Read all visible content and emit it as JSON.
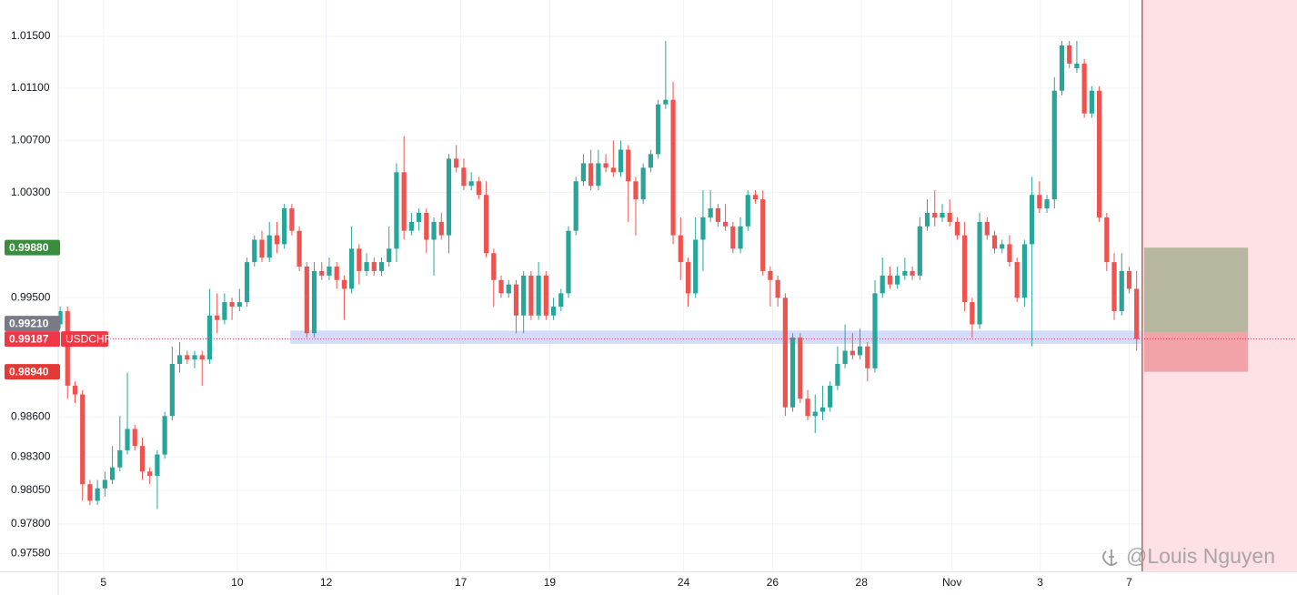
{
  "chart_data": {
    "type": "candlestick",
    "symbol": "USDCHF",
    "log": true,
    "grid": true,
    "up_color": "#26a69a",
    "down_color": "#ef5350",
    "xlim": [
      -0.25,
      165.45
    ],
    "ylim": [
      0.97447,
      1.01782
    ],
    "yticks": [
      {
        "value": 1.015,
        "label": "1.01500"
      },
      {
        "value": 1.011,
        "label": "1.01100"
      },
      {
        "value": 1.007,
        "label": "1.00700"
      },
      {
        "value": 1.003,
        "label": "1.00300"
      },
      {
        "value": 0.995,
        "label": "0.99500"
      },
      {
        "value": 0.986,
        "label": "0.98600"
      },
      {
        "value": 0.983,
        "label": "0.98300"
      },
      {
        "value": 0.9805,
        "label": "0.98050"
      },
      {
        "value": 0.978,
        "label": "0.97800"
      },
      {
        "value": 0.9758,
        "label": "0.97580"
      }
    ],
    "xticks": [
      {
        "value": 5.8,
        "label": "5"
      },
      {
        "value": 23.7,
        "label": "10"
      },
      {
        "value": 35.6,
        "label": "12"
      },
      {
        "value": 53.6,
        "label": "17"
      },
      {
        "value": 65.5,
        "label": "19"
      },
      {
        "value": 83.4,
        "label": "24"
      },
      {
        "value": 95.3,
        "label": "26"
      },
      {
        "value": 107.2,
        "label": "28"
      },
      {
        "value": 119.3,
        "label": "Nov"
      },
      {
        "value": 131.1,
        "label": "3"
      },
      {
        "value": 143.0,
        "label": "7"
      }
    ],
    "open": [
      0.99298,
      0.99398,
      0.98835,
      0.98769,
      0.98096,
      0.97972,
      0.98065,
      0.98128,
      0.98222,
      0.9835,
      0.9851,
      0.98382,
      0.98191,
      0.98159,
      0.98318,
      0.98607,
      0.98999,
      0.99065,
      0.99032,
      0.99065,
      0.99032,
      0.99365,
      0.99331,
      0.99466,
      0.99432,
      0.99466,
      0.9977,
      0.9994,
      0.99804,
      0.99974,
      0.99906,
      1.00179,
      1.00008,
      0.99736,
      0.99231,
      0.99702,
      0.99668,
      0.99736,
      0.99634,
      0.99567,
      0.99872,
      0.99702,
      0.9977,
      0.99702,
      0.9977,
      0.99872,
      1.00455,
      1.00008,
      1.00076,
      1.00145,
      0.9994,
      1.00076,
      0.99974,
      1.00559,
      1.0049,
      1.00351,
      1.00386,
      1.00282,
      0.99838,
      0.99634,
      0.99533,
      0.996,
      0.99365,
      0.99668,
      0.99365,
      0.99668,
      0.99365,
      0.99432,
      0.99533,
      1.00008,
      1.00386,
      1.00524,
      1.00351,
      1.00524,
      1.0049,
      1.00455,
      1.00628,
      1.00386,
      1.00248,
      1.0049,
      1.00594,
      1.00976,
      1.01011,
      0.99974,
      0.9977,
      0.99533,
      0.9994,
      1.0011,
      1.00179,
      1.00076,
      1.00042,
      0.99872,
      1.00042,
      1.00282,
      1.00248,
      0.99702,
      0.99634,
      0.99499,
      0.98672,
      0.99198,
      0.98737,
      0.98607,
      0.98639,
      0.98672,
      0.98835,
      0.98999,
      0.99098,
      0.99065,
      0.99131,
      0.98966,
      0.99533,
      0.99668,
      0.996,
      0.99668,
      0.99702,
      0.99668,
      1.00042,
      1.00145,
      1.0011,
      1.00145,
      1.00076,
      0.99974,
      0.99466,
      0.99298,
      1.00076,
      0.99974,
      0.99872,
      0.99906,
      0.9977,
      0.99499,
      0.99906,
      1.00282,
      1.00179,
      1.00248,
      1.01081,
      1.0143,
      1.01255,
      1.0129,
      1.00906,
      1.01081,
      1.0011,
      0.9977,
      0.99398,
      0.99702,
      0.99567
    ],
    "high": [
      0.99432,
      0.99432,
      0.98868,
      0.98802,
      0.98128,
      0.98128,
      0.98191,
      0.98382,
      0.98607,
      0.98933,
      0.98542,
      0.98446,
      0.98222,
      0.9835,
      0.98639,
      0.99131,
      0.99164,
      0.99098,
      0.99098,
      0.99098,
      0.99567,
      0.99533,
      0.99533,
      0.99499,
      0.99567,
      0.99804,
      0.99974,
      1.00008,
      1.00076,
      1.00076,
      1.00213,
      1.00213,
      1.00042,
      0.9977,
      0.9977,
      0.9977,
      0.99804,
      0.9977,
      0.99668,
      1.00042,
      0.99906,
      0.99838,
      0.99804,
      0.99804,
      1.00042,
      1.00524,
      1.00732,
      1.00145,
      1.00179,
      1.00179,
      1.0011,
      1.00145,
      1.00594,
      1.00663,
      1.00559,
      1.00455,
      1.0042,
      1.00386,
      0.99872,
      0.99668,
      0.99634,
      0.99634,
      0.99702,
      0.99702,
      0.9977,
      0.99702,
      0.99499,
      0.99567,
      1.00042,
      1.0042,
      1.00594,
      1.00628,
      1.00628,
      1.00594,
      1.00698,
      1.00698,
      1.00663,
      1.0042,
      1.00524,
      1.00628,
      1.01011,
      1.01465,
      1.0115,
      1.0011,
      0.99804,
      1.0011,
      1.00317,
      1.00317,
      1.00213,
      1.00213,
      1.00076,
      1.0011,
      1.00317,
      1.00317,
      1.00317,
      0.99736,
      0.99668,
      0.99533,
      0.99231,
      0.99231,
      0.98802,
      0.98769,
      0.98835,
      0.98868,
      0.99131,
      0.99298,
      0.99231,
      0.99264,
      0.99164,
      0.99634,
      0.99804,
      0.99736,
      0.99736,
      0.99804,
      0.99736,
      1.0011,
      1.00248,
      1.00317,
      1.00213,
      1.00248,
      1.0011,
      1.00076,
      0.99499,
      1.00145,
      1.0011,
      1.00008,
      0.9994,
      0.99974,
      0.99804,
      0.9994,
      1.0042,
      1.00386,
      1.00282,
      1.01185,
      1.01465,
      1.01465,
      1.01465,
      1.01325,
      1.01116,
      1.01116,
      1.00145,
      0.99838,
      0.99838,
      0.99736,
      0.99702
    ],
    "low": [
      0.99264,
      0.98737,
      0.98704,
      0.97972,
      0.97941,
      0.97941,
      0.98003,
      0.98096,
      0.98191,
      0.98318,
      0.9835,
      0.98128,
      0.98096,
      0.9791,
      0.98286,
      0.98575,
      0.98933,
      0.98999,
      0.98966,
      0.98835,
      0.98999,
      0.99231,
      0.99298,
      0.99331,
      0.99398,
      0.99432,
      0.99736,
      0.9977,
      0.9977,
      0.99838,
      0.99872,
      0.99974,
      0.99702,
      0.99198,
      0.99198,
      0.99634,
      0.99634,
      0.99567,
      0.99331,
      0.99533,
      0.996,
      0.99668,
      0.99668,
      0.99668,
      0.99736,
      0.9977,
      0.9994,
      0.99974,
      1.00008,
      0.99838,
      0.99668,
      0.9994,
      0.99838,
      1.00455,
      1.00317,
      1.00317,
      1.00248,
      0.99804,
      0.99432,
      0.99499,
      0.99499,
      0.99231,
      0.99231,
      0.99331,
      0.99331,
      0.99331,
      0.99331,
      0.99398,
      0.99499,
      0.99974,
      1.00351,
      1.00317,
      1.00317,
      1.00455,
      1.0042,
      1.0042,
      1.00076,
      0.99974,
      1.00213,
      1.00455,
      1.00559,
      1.00941,
      0.99906,
      0.99634,
      0.99432,
      0.99499,
      0.99702,
      1.00076,
      1.00042,
      1.00008,
      0.99838,
      0.99838,
      1.00008,
      1.00213,
      0.99668,
      0.99432,
      0.99432,
      0.98607,
      0.98639,
      0.98704,
      0.98575,
      0.98478,
      0.98575,
      0.98639,
      0.98802,
      0.98966,
      0.99032,
      0.99032,
      0.98868,
      0.98933,
      0.99499,
      0.99567,
      0.99567,
      0.99634,
      0.99634,
      0.99634,
      1.00008,
      1.00042,
      1.00076,
      1.00042,
      0.9994,
      0.99398,
      0.99198,
      0.99264,
      0.9994,
      0.99838,
      0.99838,
      0.99736,
      0.99466,
      0.99432,
      0.99131,
      1.00145,
      1.00145,
      1.00179,
      1.01046,
      1.01255,
      1.0122,
      1.00872,
      1.00872,
      1.00076,
      0.99702,
      0.99331,
      0.99365,
      0.99533,
      0.99098
    ],
    "close": [
      0.99398,
      0.98835,
      0.98769,
      0.98096,
      0.97972,
      0.98065,
      0.98128,
      0.98222,
      0.9835,
      0.9851,
      0.98382,
      0.98191,
      0.98159,
      0.98318,
      0.98607,
      0.98999,
      0.99065,
      0.99032,
      0.99065,
      0.99032,
      0.99365,
      0.99331,
      0.99466,
      0.99432,
      0.99466,
      0.9977,
      0.9994,
      0.99804,
      0.99974,
      0.99906,
      1.00179,
      1.00008,
      0.99736,
      0.99231,
      0.99702,
      0.99668,
      0.99736,
      0.99634,
      0.99567,
      0.99872,
      0.99702,
      0.9977,
      0.99702,
      0.9977,
      0.99872,
      1.00455,
      1.00008,
      1.00076,
      1.00145,
      0.9994,
      1.00076,
      0.99974,
      1.00559,
      1.0049,
      1.00351,
      1.00386,
      1.00282,
      0.99838,
      0.99634,
      0.99533,
      0.996,
      0.99365,
      0.99668,
      0.99365,
      0.99668,
      0.99365,
      0.99432,
      0.99533,
      1.00008,
      1.00386,
      1.00524,
      1.00351,
      1.00524,
      1.0049,
      1.00455,
      1.00628,
      1.00386,
      1.00248,
      1.0049,
      1.00594,
      1.00976,
      1.01011,
      0.99974,
      0.9977,
      0.99533,
      0.9994,
      1.0011,
      1.00179,
      1.00076,
      1.00042,
      0.99872,
      1.00042,
      1.00282,
      1.00248,
      0.99702,
      0.99634,
      0.99499,
      0.98672,
      0.99198,
      0.98737,
      0.98607,
      0.98639,
      0.98672,
      0.98835,
      0.98999,
      0.99098,
      0.99065,
      0.99131,
      0.98966,
      0.99533,
      0.99668,
      0.996,
      0.99668,
      0.99702,
      0.99668,
      1.00042,
      1.00145,
      1.0011,
      1.00145,
      1.00076,
      0.99974,
      0.99466,
      0.99298,
      1.00076,
      0.99974,
      0.99872,
      0.99906,
      0.9977,
      0.99499,
      0.99906,
      1.00282,
      1.00179,
      1.00248,
      1.01081,
      1.0143,
      1.0129,
      1.0129,
      1.00906,
      1.01081,
      1.0011,
      0.9977,
      0.99398,
      0.99702,
      0.99567,
      0.99187
    ],
    "zone": {
      "x": [
        30.8,
        144.6
      ],
      "y": [
        0.99151,
        0.99251
      ],
      "color": "#cdd6fb"
    },
    "shaded_region": {
      "x_from": 144.75,
      "color": "#fde1e4",
      "edge_color": "#8b1c22"
    },
    "position": {
      "x": [
        145.0,
        158.9
      ],
      "target": 0.9988,
      "entry": 0.9924,
      "stop": 0.9894,
      "profit_color": "#b6b79e",
      "loss_color": "#f2a3a8"
    },
    "last_price_line": {
      "value": 0.99187,
      "color": "#f23645"
    },
    "price_labels": [
      {
        "value": 0.9988,
        "label": "0.99880",
        "color": "#388e3c"
      },
      {
        "value": 0.9921,
        "label": "0.99210",
        "color": "#787b86"
      },
      {
        "value": 0.99187,
        "label": "0.99187",
        "color": "#f23645",
        "tag": "USDCHF"
      },
      {
        "value": 0.9894,
        "label": "0.98940",
        "color": "#e53935"
      }
    ],
    "watermark": "@Louis Nguyen"
  }
}
